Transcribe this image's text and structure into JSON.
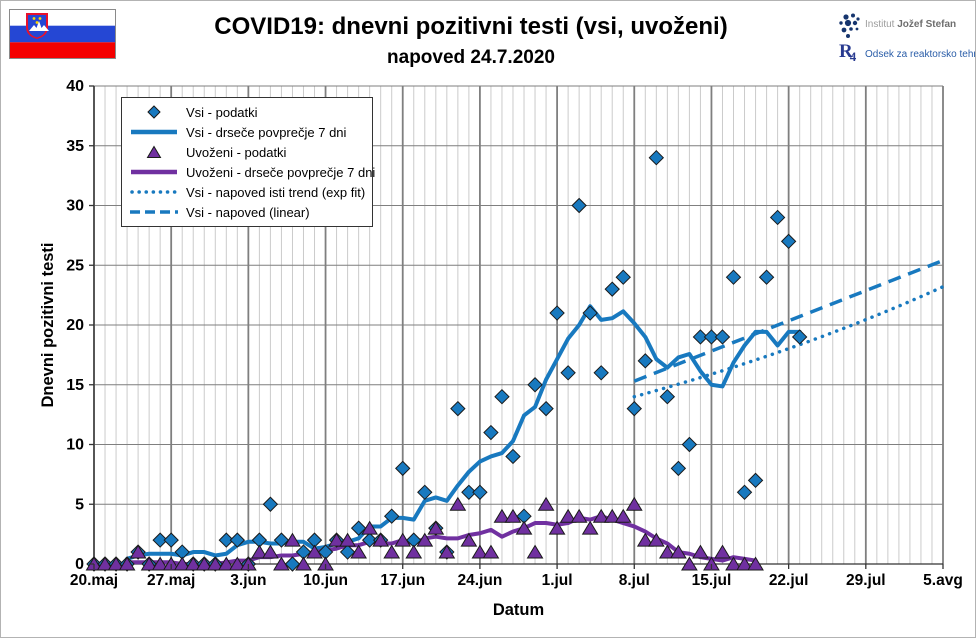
{
  "header": {
    "title": "COVID19: dnevni pozitivni testi (vsi, uvoženi)",
    "subtitle": "napoved 24.7.2020"
  },
  "logo": {
    "institute_light": "Institut",
    "institute_bold": "Jožef Stefan",
    "dept_mark": "R",
    "dept_mark_sub": "4",
    "dept_text": "Odsek za reaktorsko tehniko"
  },
  "flag": {
    "country": "Slovenia",
    "white": "#ffffff",
    "blue": "#2547d4",
    "red": "#f40000",
    "arms_blue": "#2547d4",
    "arms_red": "#e8112d",
    "arms_star": "#ffd700"
  },
  "chart_data": {
    "type": "line",
    "title": "COVID19: dnevni pozitivni testi (vsi, uvoženi)",
    "subtitle": "napoved 24.7.2020",
    "xlabel": "Datum",
    "ylabel": "Dnevni pozitivni testi",
    "ylim": [
      0,
      40
    ],
    "ytick_step": 5,
    "grid": "vertical minor daily, vertical major weekly, horizontal every 5",
    "legend_position": "top-left inside plot",
    "x_total_days": 77,
    "x_ticks": [
      {
        "day": 0,
        "label": "20.maj"
      },
      {
        "day": 7,
        "label": "27.maj"
      },
      {
        "day": 14,
        "label": "3.jun"
      },
      {
        "day": 21,
        "label": "10.jun"
      },
      {
        "day": 28,
        "label": "17.jun"
      },
      {
        "day": 35,
        "label": "24.jun"
      },
      {
        "day": 42,
        "label": "1.jul"
      },
      {
        "day": 49,
        "label": "8.jul"
      },
      {
        "day": 56,
        "label": "15.jul"
      },
      {
        "day": 63,
        "label": "22.jul"
      },
      {
        "day": 70,
        "label": "29.jul"
      },
      {
        "day": 77,
        "label": "5.avg"
      }
    ],
    "series": [
      {
        "name": "Vsi - podatki",
        "kind": "scatter",
        "marker": "diamond",
        "color": "#1879bf",
        "start_day": 0,
        "values": [
          0,
          0,
          0,
          0,
          1,
          0,
          2,
          2,
          1,
          0,
          0,
          0,
          2,
          2,
          0,
          2,
          5,
          2,
          0,
          1,
          2,
          1,
          2,
          1,
          3,
          2,
          2,
          4,
          8,
          2,
          6,
          3,
          1,
          13,
          6,
          6,
          11,
          14,
          9,
          4,
          15,
          13,
          21,
          16,
          30,
          21,
          16,
          23,
          24,
          13,
          17,
          34,
          14,
          8,
          10,
          19,
          19,
          19,
          24,
          6,
          7,
          24,
          29,
          27,
          19
        ]
      },
      {
        "name": "Vsi - drseče povprečje 7 dni",
        "kind": "moving-average",
        "window": 7,
        "source": 0,
        "color": "#1879bf"
      },
      {
        "name": "Uvoženi - podatki",
        "kind": "scatter",
        "marker": "triangle",
        "color": "#7030a0",
        "start_day": 0,
        "values": [
          0,
          0,
          0,
          0,
          1,
          0,
          0,
          0,
          0,
          0,
          0,
          0,
          0,
          0,
          0,
          1,
          1,
          0,
          2,
          0,
          1,
          0,
          2,
          2,
          1,
          3,
          2,
          1,
          2,
          1,
          2,
          3,
          1,
          5,
          2,
          1,
          1,
          4,
          4,
          3,
          1,
          5,
          3,
          4,
          4,
          3,
          4,
          4,
          4,
          5,
          2,
          2,
          1,
          1,
          0,
          1,
          0,
          1,
          0,
          0,
          0
        ]
      },
      {
        "name": "Uvoženi - drseče povprečje 7 dni",
        "kind": "moving-average",
        "window": 7,
        "source": 2,
        "color": "#7030a0"
      },
      {
        "name": "Vsi - napoved isti trend (exp fit)",
        "kind": "forecast-exp",
        "line": "dotted",
        "color": "#1879bf",
        "start_day": 49,
        "start_value": 14.0,
        "end_day": 77,
        "end_value": 23.2
      },
      {
        "name": "Vsi - napoved (linear)",
        "kind": "forecast-linear",
        "line": "dashed",
        "color": "#1879bf",
        "start_day": 49,
        "start_value": 15.3,
        "end_day": 77,
        "end_value": 25.4
      }
    ]
  }
}
